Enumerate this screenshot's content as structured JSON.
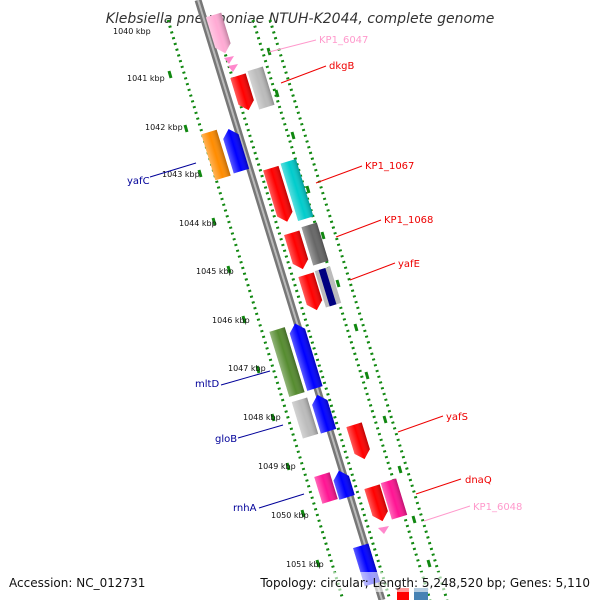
{
  "title": "Klebsiella pneumoniae NTUH-K2044, complete genome",
  "accession": "Accession: NC_012731",
  "summary": "Topology: circular; Length: 5,248,520 bp; Genes: 5,110",
  "ticks": [
    "1040 kbp",
    "1041 kbp",
    "1042 kbp",
    "1043 kbp",
    "1044 kbp",
    "1045 kbp",
    "1046 kbp",
    "1047 kbp",
    "1048 kbp",
    "1049 kbp",
    "1050 kbp",
    "1051 kbp"
  ],
  "genes": [
    {
      "name": "KP1_6047",
      "color": "#ff99cc"
    },
    {
      "name": "dkgB",
      "color": "#ee0000"
    },
    {
      "name": "yafC",
      "color": "#000099"
    },
    {
      "name": "KP1_1067",
      "color": "#ee0000"
    },
    {
      "name": "KP1_1068",
      "color": "#ee0000"
    },
    {
      "name": "yafE",
      "color": "#ee0000"
    },
    {
      "name": "mltD",
      "color": "#000099"
    },
    {
      "name": "gloB",
      "color": "#000099"
    },
    {
      "name": "yafS",
      "color": "#ee0000"
    },
    {
      "name": "dnaQ",
      "color": "#ee0000"
    },
    {
      "name": "rnhA",
      "color": "#000099"
    },
    {
      "name": "KP1_6048",
      "color": "#ff99cc"
    }
  ],
  "colors": {
    "backbone": "#888888",
    "dotted_track": "#118811",
    "feature_red": "#ff0000",
    "feature_blue": "#0000ff",
    "feature_orange": "#ff8c00",
    "feature_cyan": "#00cccc",
    "feature_gray": "#bbbbbb",
    "feature_darkgray": "#666666",
    "feature_navy": "#000080",
    "feature_olive": "#558b2f",
    "feature_magenta": "#ff1493",
    "feature_pink": "#ffaad4"
  }
}
